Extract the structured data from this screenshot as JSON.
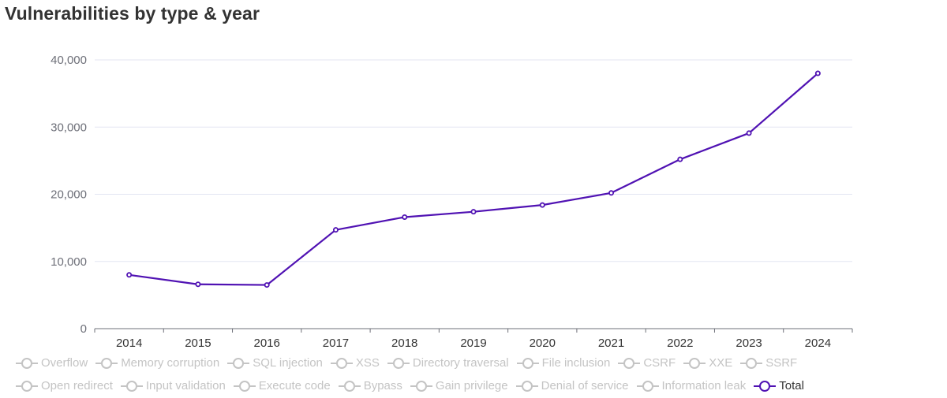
{
  "title": "Vulnerabilities by type & year",
  "colors": {
    "series_active": "#5012b3",
    "legend_inactive": "#c4c4c4",
    "grid": "#e3e6f2",
    "axis": "#6e7079",
    "tick_text": "#6e7079"
  },
  "legend": {
    "row1": [
      {
        "label": "Overflow",
        "active": false
      },
      {
        "label": "Memory corruption",
        "active": false
      },
      {
        "label": "SQL injection",
        "active": false
      },
      {
        "label": "XSS",
        "active": false
      },
      {
        "label": "Directory traversal",
        "active": false
      },
      {
        "label": "File inclusion",
        "active": false
      },
      {
        "label": "CSRF",
        "active": false
      },
      {
        "label": "XXE",
        "active": false
      },
      {
        "label": "SSRF",
        "active": false
      }
    ],
    "row2": [
      {
        "label": "Open redirect",
        "active": false
      },
      {
        "label": "Input validation",
        "active": false
      },
      {
        "label": "Execute code",
        "active": false
      },
      {
        "label": "Bypass",
        "active": false
      },
      {
        "label": "Gain privilege",
        "active": false
      },
      {
        "label": "Denial of service",
        "active": false
      },
      {
        "label": "Information leak",
        "active": false
      },
      {
        "label": "Total",
        "active": true
      }
    ]
  },
  "chart_data": {
    "type": "line",
    "categories": [
      "2014",
      "2015",
      "2016",
      "2017",
      "2018",
      "2019",
      "2020",
      "2021",
      "2022",
      "2023",
      "2024"
    ],
    "series": [
      {
        "name": "Total",
        "values": [
          8000,
          6600,
          6500,
          14700,
          16600,
          17400,
          18400,
          20200,
          25200,
          29100,
          38000
        ]
      }
    ],
    "ylim": [
      0,
      40000
    ],
    "yticks": [
      0,
      10000,
      20000,
      30000,
      40000
    ],
    "ytick_labels": [
      "0",
      "10,000",
      "20,000",
      "30,000",
      "40,000"
    ],
    "xlabel": "",
    "ylabel": "",
    "grid": true,
    "legend_position": "bottom"
  }
}
